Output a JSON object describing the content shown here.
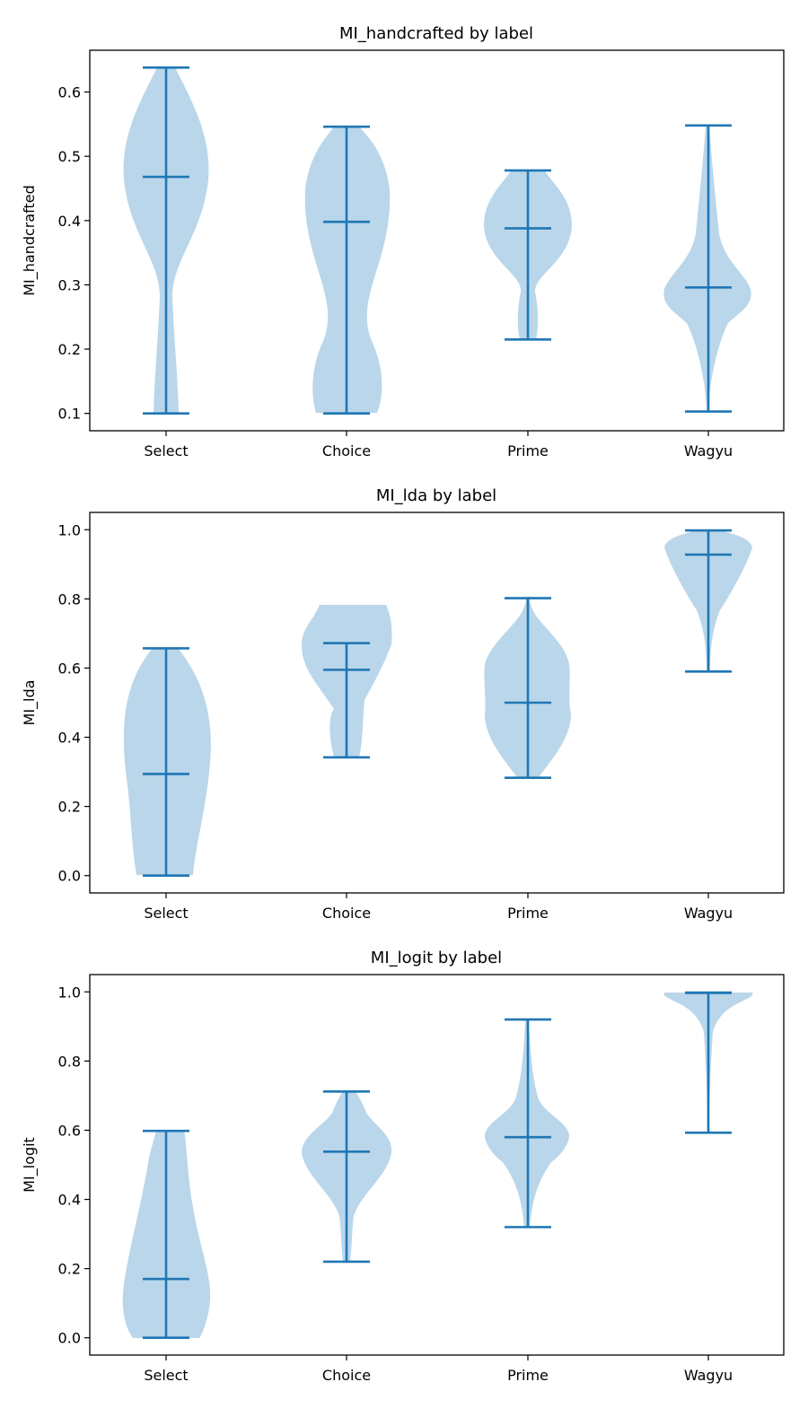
{
  "chart_data": [
    {
      "type": "violin",
      "title": "MI_handcrafted by label",
      "xlabel": "",
      "ylabel": "MI_handcrafted",
      "categories": [
        "Select",
        "Choice",
        "Prime",
        "Wagyu"
      ],
      "ylim": [
        0.073,
        0.665
      ],
      "yticks": [
        "0.1",
        "0.2",
        "0.3",
        "0.4",
        "0.5",
        "0.6"
      ],
      "stats": [
        {
          "min": 0.1,
          "median": 0.468,
          "max": 0.638
        },
        {
          "min": 0.1,
          "median": 0.398,
          "max": 0.546
        },
        {
          "min": 0.215,
          "median": 0.388,
          "max": 0.478
        },
        {
          "min": 0.103,
          "median": 0.296,
          "max": 0.548
        }
      ],
      "color": "#1f77b4",
      "fill_color": "#bad6ea",
      "grid": false
    },
    {
      "type": "violin",
      "title": "MI_lda by label",
      "xlabel": "",
      "ylabel": "MI_lda",
      "categories": [
        "Select",
        "Choice",
        "Prime",
        "Wagyu"
      ],
      "ylim": [
        -0.05,
        1.05
      ],
      "yticks": [
        "0.0",
        "0.2",
        "0.4",
        "0.6",
        "0.8",
        "1.0"
      ],
      "stats": [
        {
          "min": 0.0,
          "median": 0.294,
          "max": 0.657
        },
        {
          "min": 0.342,
          "median": 0.595,
          "max": 0.672
        },
        {
          "min": 0.283,
          "median": 0.5,
          "max": 0.802
        },
        {
          "min": 0.59,
          "median": 0.928,
          "max": 0.998
        }
      ],
      "color": "#1f77b4",
      "fill_color": "#bad6ea",
      "grid": false
    },
    {
      "type": "violin",
      "title": "MI_logit by label",
      "xlabel": "",
      "ylabel": "MI_logit",
      "categories": [
        "Select",
        "Choice",
        "Prime",
        "Wagyu"
      ],
      "ylim": [
        -0.05,
        1.05
      ],
      "yticks": [
        "0.0",
        "0.2",
        "0.4",
        "0.6",
        "0.8",
        "1.0"
      ],
      "stats": [
        {
          "min": 0.0,
          "median": 0.17,
          "max": 0.598
        },
        {
          "min": 0.22,
          "median": 0.538,
          "max": 0.712
        },
        {
          "min": 0.32,
          "median": 0.58,
          "max": 0.92
        },
        {
          "min": 0.593,
          "median": 0.997,
          "max": 0.998
        }
      ],
      "color": "#1f77b4",
      "fill_color": "#bad6ea",
      "grid": false
    }
  ]
}
